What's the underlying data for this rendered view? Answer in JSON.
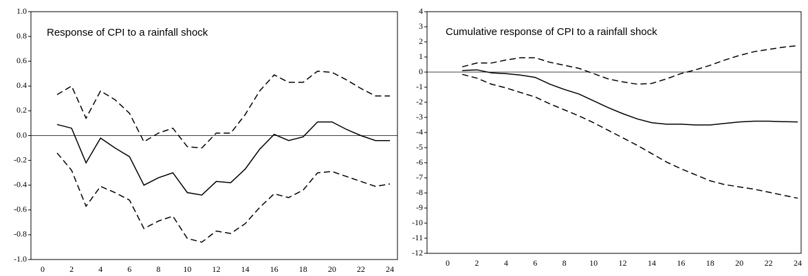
{
  "chart_data": [
    {
      "type": "line",
      "title": "Response of CPI to a rainfall shock",
      "x": [
        1,
        2,
        3,
        4,
        5,
        6,
        7,
        8,
        9,
        10,
        11,
        12,
        13,
        14,
        15,
        16,
        17,
        18,
        19,
        20,
        21,
        22,
        23,
        24
      ],
      "series": [
        {
          "color": "#000000",
          "style": "solid",
          "values": [
            0.09,
            0.06,
            -0.22,
            -0.02,
            -0.1,
            -0.17,
            -0.4,
            -0.34,
            -0.3,
            -0.46,
            -0.48,
            -0.37,
            -0.38,
            -0.27,
            -0.11,
            0.01,
            -0.04,
            -0.01,
            0.11,
            0.11,
            0.05,
            0,
            -0.04,
            -0.04
          ]
        },
        {
          "color": "#000000",
          "style": "dashed",
          "values": [
            0.33,
            0.4,
            0.14,
            0.36,
            0.29,
            0.18,
            -0.05,
            0.02,
            0.06,
            -0.09,
            -0.1,
            0.02,
            0.02,
            0.17,
            0.36,
            0.49,
            0.43,
            0.43,
            0.52,
            0.51,
            0.45,
            0.38,
            0.32,
            0.32
          ]
        },
        {
          "color": "#000000",
          "style": "dashed",
          "values": [
            -0.14,
            -0.28,
            -0.57,
            -0.41,
            -0.46,
            -0.52,
            -0.75,
            -0.69,
            -0.65,
            -0.83,
            -0.86,
            -0.77,
            -0.79,
            -0.71,
            -0.58,
            -0.47,
            -0.5,
            -0.44,
            -0.3,
            -0.29,
            -0.33,
            -0.37,
            -0.41,
            -0.39
          ]
        }
      ],
      "xlim": [
        0,
        24
      ],
      "xticks": [
        0,
        2,
        4,
        6,
        8,
        10,
        12,
        14,
        16,
        18,
        20,
        22,
        24
      ],
      "ylim": [
        -1,
        1
      ],
      "yticks": [
        {
          "value": -1,
          "label": "-1.0"
        },
        -0.8,
        -0.6,
        -0.4,
        -0.2,
        {
          "value": 0,
          "label": "0.0"
        },
        0.2,
        0.4,
        0.6,
        0.8,
        {
          "value": 1,
          "label": "1.0"
        }
      ],
      "hline": 0
    },
    {
      "type": "line",
      "title": "Cumulative response of CPI to a rainfall shock",
      "x": [
        1,
        2,
        3,
        4,
        5,
        6,
        7,
        8,
        9,
        10,
        11,
        12,
        13,
        14,
        15,
        16,
        17,
        18,
        19,
        20,
        21,
        22,
        23,
        24
      ],
      "series": [
        {
          "color": "#000000",
          "style": "solid",
          "values": [
            0.1,
            0.15,
            -0.05,
            -0.1,
            -0.2,
            -0.35,
            -0.8,
            -1.15,
            -1.45,
            -1.9,
            -2.35,
            -2.75,
            -3.1,
            -3.35,
            -3.45,
            -3.45,
            -3.5,
            -3.5,
            -3.4,
            -3.3,
            -3.25,
            -3.25,
            -3.28,
            -3.3
          ]
        },
        {
          "color": "#000000",
          "style": "dashed",
          "values": [
            0.35,
            0.6,
            0.6,
            0.8,
            0.95,
            0.95,
            0.65,
            0.45,
            0.25,
            -0.1,
            -0.45,
            -0.65,
            -0.8,
            -0.75,
            -0.45,
            -0.1,
            0.15,
            0.45,
            0.8,
            1.1,
            1.35,
            1.5,
            1.65,
            1.75
          ]
        },
        {
          "color": "#000000",
          "style": "dashed",
          "values": [
            -0.15,
            -0.4,
            -0.8,
            -1.05,
            -1.35,
            -1.65,
            -2.1,
            -2.5,
            -2.9,
            -3.35,
            -3.85,
            -4.35,
            -4.85,
            -5.4,
            -5.95,
            -6.4,
            -6.8,
            -7.2,
            -7.45,
            -7.6,
            -7.75,
            -7.95,
            -8.15,
            -8.35
          ]
        }
      ],
      "xlim": [
        0,
        24
      ],
      "xticks": [
        0,
        2,
        4,
        6,
        8,
        10,
        12,
        14,
        16,
        18,
        20,
        22,
        24
      ],
      "ylim": [
        -12,
        4
      ],
      "yticks": [
        -12,
        -11,
        -10,
        -9,
        -8,
        -7,
        -6,
        -5,
        -4,
        -3,
        -2,
        -1,
        0,
        1,
        2,
        3,
        4
      ],
      "hline": 0
    }
  ]
}
